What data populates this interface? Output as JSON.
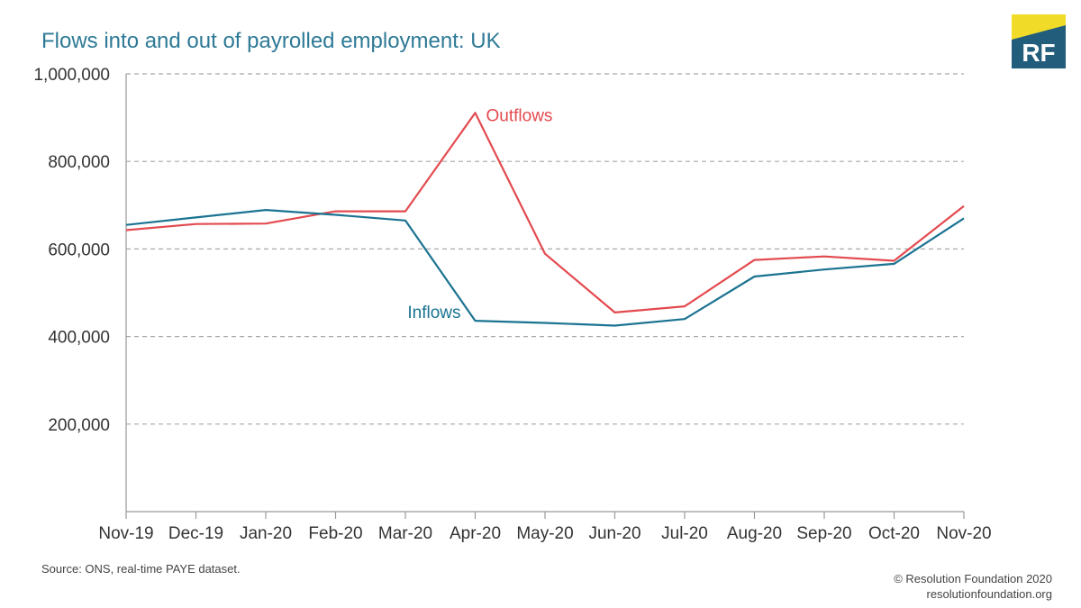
{
  "title": "Flows into and out of payrolled employment: UK",
  "logo": {
    "text": "RF",
    "colors": {
      "navy": "#235d7c",
      "yellow": "#f0dc28"
    }
  },
  "source": "Source: ONS, real-time PAYE dataset.",
  "credit": {
    "line1": "© Resolution Foundation 2020",
    "line2": "resolutionfoundation.org"
  },
  "chart_data": {
    "type": "line",
    "title": "Flows into and out of payrolled employment: UK",
    "xlabel": "",
    "ylabel": "",
    "x": [
      "Nov-19",
      "Dec-19",
      "Jan-20",
      "Feb-20",
      "Mar-20",
      "Apr-20",
      "May-20",
      "Jun-20",
      "Jul-20",
      "Aug-20",
      "Sep-20",
      "Oct-20",
      "Nov-20"
    ],
    "yticks": [
      200000,
      400000,
      600000,
      800000,
      1000000
    ],
    "ytick_labels": [
      "200,000",
      "400,000",
      "600,000",
      "800,000",
      "1,000,000"
    ],
    "ylim": [
      0,
      1000000
    ],
    "grid": "horizontal dashed",
    "legend": "inline labels",
    "series": [
      {
        "name": "Outflows",
        "color": "#e34a4f",
        "values": [
          643000,
          657000,
          658000,
          686000,
          686000,
          911000,
          589000,
          455000,
          469000,
          575000,
          583000,
          573000,
          698000
        ]
      },
      {
        "name": "Inflows",
        "color": "#1b7391",
        "values": [
          655000,
          672000,
          689000,
          678000,
          665000,
          436000,
          431000,
          425000,
          440000,
          537000,
          553000,
          566000,
          670000
        ]
      }
    ]
  }
}
